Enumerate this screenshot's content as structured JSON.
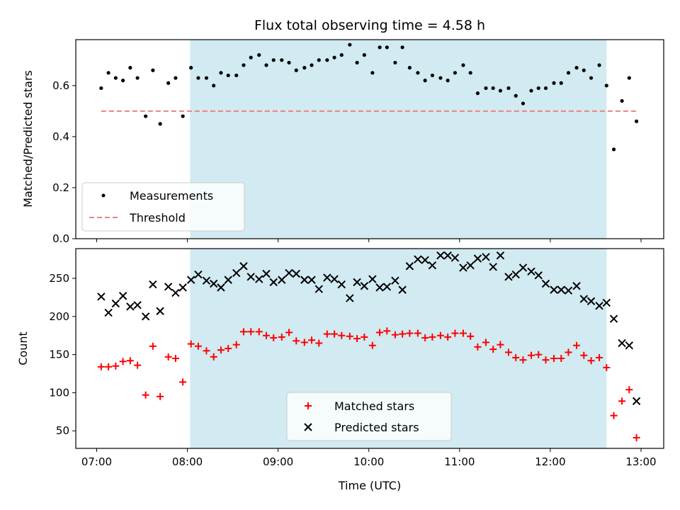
{
  "chart_data": {
    "title": "Flux total observing time = 4.58 h",
    "xlabel": "Time (UTC)",
    "x_unit": "hours",
    "x_tick_values": [
      7,
      8,
      9,
      10,
      11,
      12,
      13
    ],
    "x_tick_labels": [
      "07:00",
      "08:00",
      "09:00",
      "10:00",
      "11:00",
      "12:00",
      "13:00"
    ],
    "xlim": [
      6.77,
      13.25
    ],
    "shaded_span": {
      "start": 8.03,
      "end": 12.62,
      "color": "#add8e6"
    },
    "panels": [
      {
        "type": "scatter",
        "ylabel": "Matched/Predicted stars",
        "ylim": [
          0,
          0.78
        ],
        "y_ticks": [
          0.0,
          0.2,
          0.4,
          0.6
        ],
        "y_tick_labels": [
          "0.0",
          "0.2",
          "0.4",
          "0.6"
        ],
        "legend": {
          "position": "lower-left",
          "entries": [
            "Measurements",
            "Threshold"
          ]
        },
        "series": [
          {
            "name": "Measurements",
            "marker": "dot",
            "color": "#000000",
            "x": [
              7.05,
              7.13,
              7.21,
              7.29,
              7.37,
              7.45,
              7.54,
              7.62,
              7.7,
              7.79,
              7.87,
              7.95,
              8.04,
              8.12,
              8.21,
              8.29,
              8.37,
              8.45,
              8.54,
              8.62,
              8.7,
              8.79,
              8.87,
              8.95,
              9.04,
              9.12,
              9.2,
              9.29,
              9.37,
              9.45,
              9.54,
              9.62,
              9.7,
              9.79,
              9.87,
              9.95,
              10.04,
              10.12,
              10.2,
              10.29,
              10.37,
              10.45,
              10.54,
              10.62,
              10.7,
              10.79,
              10.87,
              10.95,
              11.04,
              11.12,
              11.2,
              11.29,
              11.37,
              11.45,
              11.54,
              11.62,
              11.7,
              11.79,
              11.87,
              11.95,
              12.04,
              12.12,
              12.2,
              12.29,
              12.37,
              12.45,
              12.54,
              12.62,
              12.7,
              12.79,
              12.87,
              12.95
            ],
            "y": [
              0.59,
              0.65,
              0.63,
              0.62,
              0.67,
              0.63,
              0.48,
              0.66,
              0.45,
              0.61,
              0.63,
              0.48,
              0.67,
              0.63,
              0.63,
              0.6,
              0.65,
              0.64,
              0.64,
              0.68,
              0.71,
              0.72,
              0.68,
              0.7,
              0.7,
              0.69,
              0.66,
              0.67,
              0.68,
              0.7,
              0.7,
              0.71,
              0.72,
              0.76,
              0.69,
              0.72,
              0.65,
              0.75,
              0.75,
              0.69,
              0.75,
              0.67,
              0.65,
              0.62,
              0.64,
              0.63,
              0.62,
              0.65,
              0.68,
              0.65,
              0.57,
              0.59,
              0.59,
              0.58,
              0.59,
              0.56,
              0.53,
              0.58,
              0.59,
              0.59,
              0.61,
              0.61,
              0.65,
              0.67,
              0.66,
              0.63,
              0.68,
              0.6,
              0.35,
              0.54,
              0.63,
              0.46
            ]
          },
          {
            "name": "Threshold",
            "style": "dashed-line",
            "color": "#f08080",
            "x": [
              7.05,
              12.95
            ],
            "y": [
              0.5,
              0.5
            ]
          }
        ]
      },
      {
        "type": "scatter",
        "ylabel": "Count",
        "ylim": [
          27,
          289
        ],
        "y_ticks": [
          50,
          100,
          150,
          200,
          250
        ],
        "y_tick_labels": [
          "50",
          "100",
          "150",
          "200",
          "250"
        ],
        "legend": {
          "position": "lower-center",
          "entries": [
            "Matched stars",
            "Predicted stars"
          ]
        },
        "series": [
          {
            "name": "Matched stars",
            "marker": "plus",
            "color": "#ff0000",
            "x": [
              7.05,
              7.13,
              7.21,
              7.29,
              7.37,
              7.45,
              7.54,
              7.62,
              7.7,
              7.79,
              7.87,
              7.95,
              8.04,
              8.12,
              8.21,
              8.29,
              8.37,
              8.45,
              8.54,
              8.62,
              8.7,
              8.79,
              8.87,
              8.95,
              9.04,
              9.12,
              9.2,
              9.29,
              9.37,
              9.45,
              9.54,
              9.62,
              9.7,
              9.79,
              9.87,
              9.95,
              10.04,
              10.12,
              10.2,
              10.29,
              10.37,
              10.45,
              10.54,
              10.62,
              10.7,
              10.79,
              10.87,
              10.95,
              11.04,
              11.12,
              11.2,
              11.29,
              11.37,
              11.45,
              11.54,
              11.62,
              11.7,
              11.79,
              11.87,
              11.95,
              12.04,
              12.12,
              12.2,
              12.29,
              12.37,
              12.45,
              12.54,
              12.62,
              12.7,
              12.79,
              12.87,
              12.95
            ],
            "y": [
              134,
              134,
              135,
              141,
              142,
              136,
              97,
              161,
              95,
              147,
              145,
              114,
              164,
              161,
              155,
              147,
              156,
              158,
              163,
              180,
              180,
              180,
              175,
              172,
              173,
              179,
              168,
              166,
              169,
              165,
              177,
              177,
              175,
              174,
              171,
              173,
              162,
              179,
              181,
              176,
              177,
              178,
              178,
              172,
              173,
              175,
              173,
              178,
              178,
              174,
              160,
              166,
              157,
              163,
              153,
              146,
              143,
              149,
              150,
              143,
              145,
              145,
              153,
              162,
              149,
              142,
              146,
              133,
              70,
              89,
              104,
              41
            ]
          },
          {
            "name": "Predicted stars",
            "marker": "x",
            "color": "#000000",
            "x": [
              7.05,
              7.13,
              7.21,
              7.29,
              7.37,
              7.45,
              7.54,
              7.62,
              7.7,
              7.79,
              7.87,
              7.95,
              8.04,
              8.12,
              8.21,
              8.29,
              8.37,
              8.45,
              8.54,
              8.62,
              8.7,
              8.79,
              8.87,
              8.95,
              9.04,
              9.12,
              9.2,
              9.29,
              9.37,
              9.45,
              9.54,
              9.62,
              9.7,
              9.79,
              9.87,
              9.95,
              10.04,
              10.12,
              10.2,
              10.29,
              10.37,
              10.45,
              10.54,
              10.62,
              10.7,
              10.79,
              10.87,
              10.95,
              11.04,
              11.12,
              11.2,
              11.29,
              11.37,
              11.45,
              11.54,
              11.62,
              11.7,
              11.79,
              11.87,
              11.95,
              12.04,
              12.12,
              12.2,
              12.29,
              12.37,
              12.45,
              12.54,
              12.62,
              12.7,
              12.79,
              12.87,
              12.95
            ],
            "y": [
              226,
              205,
              217,
              227,
              213,
              215,
              200,
              242,
              207,
              239,
              231,
              238,
              248,
              255,
              247,
              243,
              238,
              248,
              257,
              266,
              252,
              249,
              256,
              245,
              248,
              257,
              256,
              248,
              248,
              236,
              251,
              249,
              242,
              224,
              245,
              240,
              249,
              238,
              239,
              247,
              235,
              266,
              275,
              274,
              267,
              280,
              280,
              277,
              264,
              267,
              276,
              278,
              265,
              280,
              252,
              255,
              264,
              259,
              254,
              243,
              235,
              235,
              234,
              240,
              223,
              220,
              214,
              218,
              197,
              165,
              162,
              89
            ]
          }
        ]
      }
    ]
  }
}
